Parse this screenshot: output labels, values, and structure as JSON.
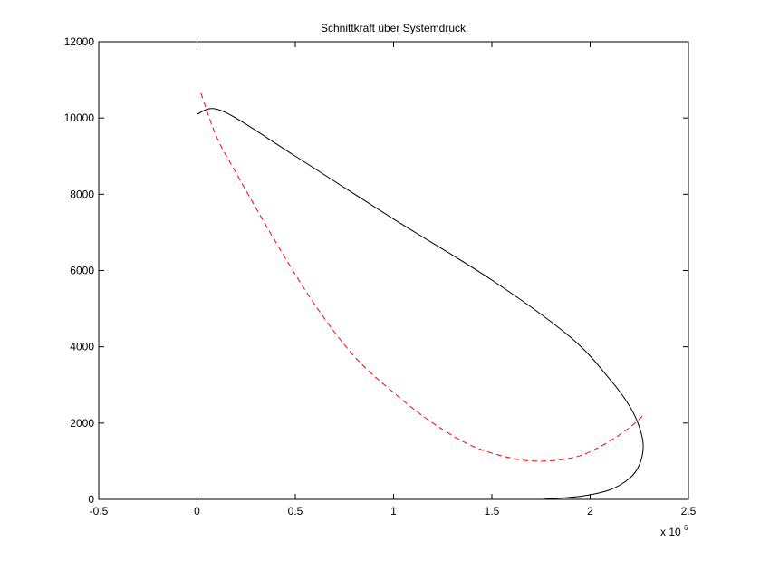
{
  "chart_data": {
    "type": "line",
    "title": "Schnittkraft über Systemdruck",
    "xlabel": "",
    "ylabel": "",
    "x_multiplier": {
      "base": "x 10",
      "exponent": "6"
    },
    "xlim": [
      -0.5,
      2.5
    ],
    "ylim": [
      0,
      12000
    ],
    "xticks": [
      -0.5,
      0,
      0.5,
      1,
      1.5,
      2,
      2.5
    ],
    "xtick_labels": [
      "-0.5",
      "0",
      "0.5",
      "1",
      "1.5",
      "2",
      "2.5"
    ],
    "yticks": [
      0,
      2000,
      4000,
      6000,
      8000,
      10000,
      12000
    ],
    "ytick_labels": [
      "0",
      "2000",
      "4000",
      "6000",
      "8000",
      "10000",
      "12000"
    ],
    "grid": false,
    "series": [
      {
        "style": "solid",
        "color": "#000000",
        "x": [
          0.0,
          0.13,
          0.5,
          1.0,
          1.5,
          1.9,
          2.1,
          2.2,
          2.25,
          2.27,
          2.25,
          2.2,
          2.1,
          1.95,
          1.75
        ],
        "y": [
          10100,
          10180,
          9000,
          7350,
          5750,
          4250,
          3150,
          2450,
          1900,
          1400,
          900,
          550,
          250,
          80,
          0
        ]
      },
      {
        "style": "dashed",
        "color": "#ff0000",
        "x": [
          0.02,
          0.1,
          0.2,
          0.4,
          0.6,
          0.8,
          1.0,
          1.2,
          1.4,
          1.6,
          1.75,
          1.9,
          2.0,
          2.1,
          2.2,
          2.28
        ],
        "y": [
          10650,
          9500,
          8550,
          6750,
          5100,
          3750,
          2800,
          2000,
          1400,
          1080,
          1000,
          1080,
          1250,
          1530,
          1880,
          2250
        ]
      }
    ]
  }
}
